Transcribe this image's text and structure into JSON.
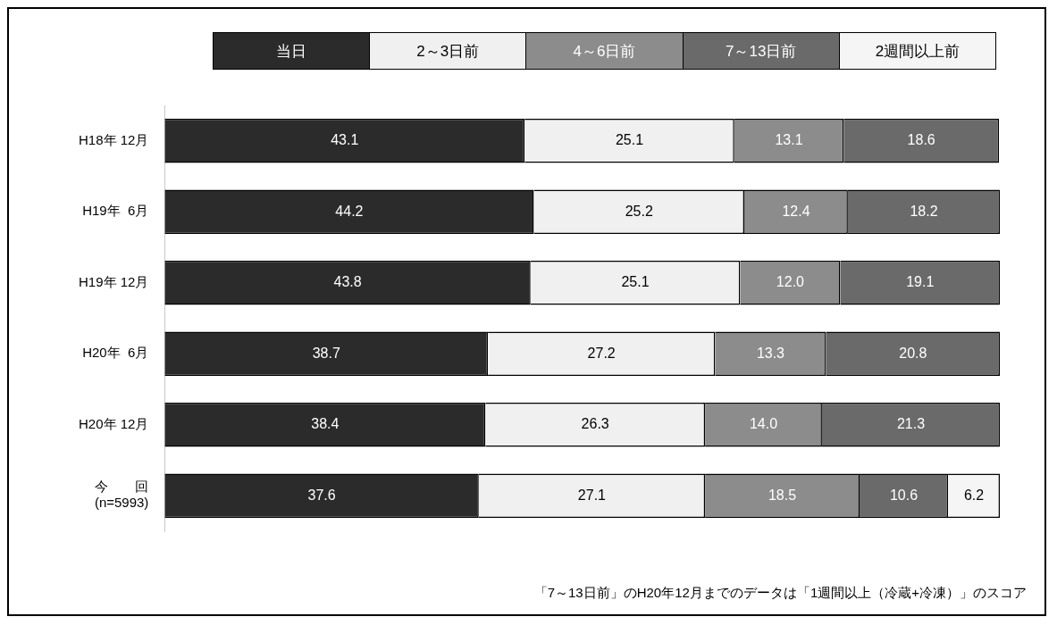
{
  "chart_data": {
    "type": "bar",
    "orientation": "horizontal",
    "stacked": true,
    "legend": "top",
    "categories": [
      "H18年 12月",
      "H19年  6月",
      "H19年 12月",
      "H20年  6月",
      "H20年 12月",
      "今　　回\n(n=5993)"
    ],
    "series": [
      {
        "name": "当日",
        "color": "#2b2b2b",
        "values": [
          43.1,
          44.2,
          43.8,
          38.7,
          38.4,
          37.6
        ],
        "value_labels": [
          "43.1",
          "44.2",
          "43.8",
          "38.7",
          "38.4",
          "37.6"
        ]
      },
      {
        "name": "2～3日前",
        "color": "#f0f0f0",
        "values": [
          25.1,
          25.2,
          25.1,
          27.2,
          26.3,
          27.1
        ],
        "value_labels": [
          "25.1",
          "25.2",
          "25.1",
          "27.2",
          "26.3",
          "27.1"
        ]
      },
      {
        "name": "4～6日前",
        "color": "#8c8c8c",
        "values": [
          13.1,
          12.4,
          12.0,
          13.3,
          14.0,
          18.5
        ],
        "value_labels": [
          "13.1",
          "12.4",
          "12.0",
          "13.3",
          "14.0",
          "18.5"
        ]
      },
      {
        "name": "7～13日前",
        "color": "#6a6a6a",
        "values": [
          18.6,
          18.2,
          19.1,
          20.8,
          21.3,
          10.6
        ],
        "value_labels": [
          "18.6",
          "18.2",
          "19.1",
          "20.8",
          "21.3",
          "10.6"
        ]
      },
      {
        "name": "2週間以上前",
        "color": "#f5f5f5",
        "values": [
          null,
          null,
          null,
          null,
          null,
          6.2
        ],
        "value_labels": [
          null,
          null,
          null,
          null,
          null,
          "6.2"
        ]
      }
    ],
    "annotations": [
      "「7～13日前」のH20年12月までのデータは「1週間以上（冷蔵+冷凍）」のスコア"
    ]
  }
}
